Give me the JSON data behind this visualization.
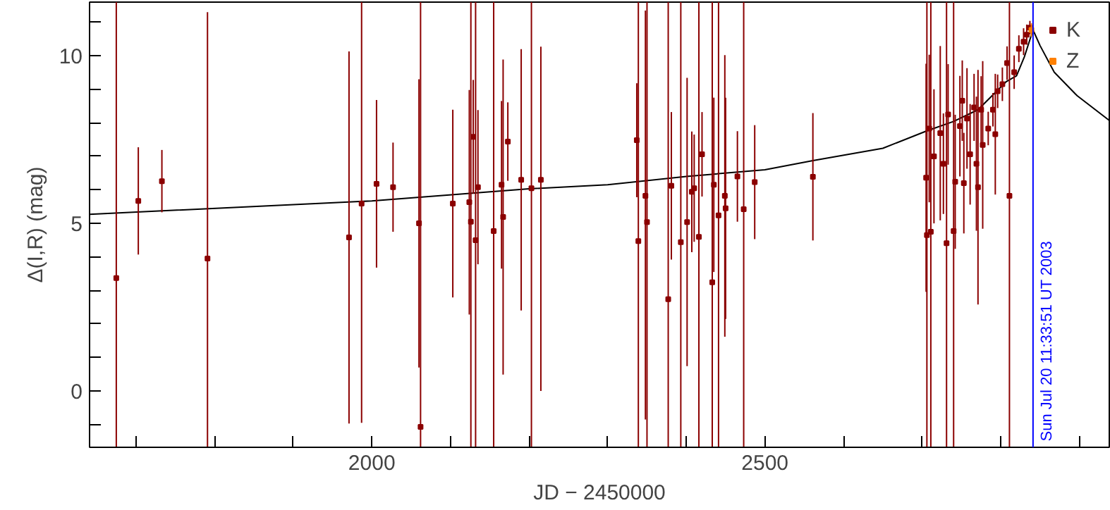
{
  "chart_data": {
    "type": "scatter",
    "xlabel": "JD − 2450000",
    "ylabel": "Δ(I,R) (mag)",
    "xlim": [
      1641,
      2938
    ],
    "ylim": [
      -1.68,
      11.6
    ],
    "xticks": [
      {
        "value": 1700,
        "label": null
      },
      {
        "value": 1800,
        "label": null
      },
      {
        "value": 1900,
        "label": null
      },
      2000,
      {
        "value": 2100,
        "label": null
      },
      {
        "value": 2200,
        "label": null
      },
      {
        "value": 2300,
        "label": null
      },
      {
        "value": 2400,
        "label": null
      },
      2500,
      {
        "value": 2600,
        "label": null
      },
      {
        "value": 2700,
        "label": null
      },
      {
        "value": 2800,
        "label": null
      },
      {
        "value": 2900,
        "label": null
      }
    ],
    "yticks": [
      {
        "value": -1,
        "label": null
      },
      0,
      {
        "value": 1,
        "label": null
      },
      {
        "value": 2,
        "label": null
      },
      {
        "value": 3,
        "label": null
      },
      {
        "value": 4,
        "label": null
      },
      5,
      {
        "value": 6,
        "label": null
      },
      {
        "value": 7,
        "label": null
      },
      {
        "value": 8,
        "label": null
      },
      {
        "value": 9,
        "label": null
      },
      10,
      {
        "value": 11,
        "label": null
      }
    ],
    "grid": false,
    "legend": "top right",
    "marker": "square",
    "series": [
      {
        "type": "line",
        "marker": "none",
        "color": "#000000",
        "x": [
          1641,
          2000,
          2200,
          2300,
          2400,
          2500,
          2561,
          2650,
          2706,
          2740,
          2771,
          2807,
          2820,
          2830,
          2841,
          2850,
          2868,
          2897,
          2938
        ],
        "values": [
          5.27,
          5.67,
          6.03,
          6.15,
          6.4,
          6.6,
          6.87,
          7.24,
          7.76,
          8.04,
          8.39,
          9.23,
          9.4,
          9.97,
          10.77,
          10.3,
          9.51,
          8.81,
          8.07
        ]
      },
      {
        "name": "K",
        "color": "#8b0000",
        "x": [
          1675,
          1703,
          1733,
          1791,
          1971,
          1987,
          2006,
          2027,
          2060,
          2062,
          2103,
          2124,
          2126,
          2129,
          2132,
          2135,
          2155,
          2165,
          2167,
          2173,
          2190,
          2203,
          2215,
          2337,
          2339,
          2348,
          2350,
          2377,
          2381,
          2393,
          2401,
          2407,
          2410,
          2416,
          2420,
          2433,
          2435,
          2441,
          2449,
          2450,
          2465,
          2473,
          2487,
          2561,
          2705,
          2706,
          2709,
          2711,
          2715,
          2723,
          2727,
          2731,
          2733,
          2740,
          2742,
          2748,
          2751,
          2753,
          2757,
          2761,
          2766,
          2769,
          2771,
          2775,
          2777,
          2784,
          2790,
          2793,
          2796,
          2802,
          2808,
          2811,
          2817,
          2823,
          2829,
          2833,
          2837
        ],
        "values": [
          3.37,
          5.67,
          6.26,
          3.95,
          4.58,
          5.59,
          6.18,
          6.08,
          5.0,
          -1.07,
          5.59,
          5.63,
          5.05,
          7.58,
          4.5,
          6.08,
          4.77,
          6.15,
          5.19,
          7.44,
          6.3,
          6.05,
          6.3,
          7.48,
          4.47,
          5.82,
          5.04,
          2.74,
          6.12,
          4.44,
          5.04,
          5.94,
          6.05,
          4.6,
          7.06,
          3.24,
          6.15,
          5.24,
          5.82,
          5.45,
          6.4,
          5.42,
          6.23,
          6.39,
          6.36,
          4.65,
          7.83,
          4.75,
          7.0,
          7.69,
          6.78,
          4.41,
          8.25,
          4.77,
          6.24,
          7.9,
          8.66,
          6.2,
          8.13,
          7.06,
          8.46,
          6.78,
          6.08,
          8.39,
          7.34,
          7.83,
          8.39,
          7.66,
          8.94,
          9.15,
          9.78,
          5.82,
          9.51,
          10.21,
          10.42,
          10.63,
          10.84
        ],
        "errors": [
          [
            -1.68,
            11.6
          ],
          1.6,
          0.93,
          [
            -1.68,
            11.3
          ],
          5.55,
          [
            -0.95,
            11.6
          ],
          2.5,
          1.33,
          4.3,
          [
            -1.68,
            11.6
          ],
          2.8,
          3.35,
          [
            -1.68,
            11.6
          ],
          1.7,
          [
            -1.68,
            11.6
          ],
          2.3,
          [
            -1.68,
            11.6
          ],
          2.5,
          4.7,
          1.17,
          3.9,
          [
            -1.68,
            11.6
          ],
          [
            0.0,
            10.27
          ],
          1.7,
          [
            -1.68,
            11.6
          ],
          [
            -0.85,
            11.35
          ],
          [
            -1.68,
            11.6
          ],
          [
            -1.68,
            11.6
          ],
          2.2,
          [
            -1.68,
            11.6
          ],
          4.3,
          1.8,
          1.6,
          [
            -1.68,
            11.6
          ],
          1.26,
          [
            -1.68,
            11.6
          ],
          2.6,
          [
            -1.68,
            11.6
          ],
          4.2,
          3.3,
          1.35,
          [
            -1.68,
            11.6
          ],
          1.7,
          1.9,
          3.4,
          [
            -1.68,
            11.6
          ],
          2.2,
          [
            -1.68,
            11.6
          ],
          2.0,
          2.6,
          1.5,
          [
            -1.68,
            11.6
          ],
          1.5,
          [
            -1.68,
            11.6
          ],
          2.0,
          1.5,
          1.2,
          1.5,
          1.5,
          1.5,
          1.0,
          2.0,
          3.5,
          1.0,
          2.5,
          0.5,
          0.5,
          1.8,
          0.5,
          0.5,
          0.5,
          [
            -1.68,
            11.6
          ],
          0.5,
          0.4,
          0.4,
          0.3,
          0.2
        ]
      },
      {
        "name": "Z",
        "color": "#ff8000",
        "x": [
          2839
        ],
        "values": [
          10.77
        ],
        "errors": [
          0.2
        ]
      }
    ],
    "ref_lines": [
      {
        "axis": "x",
        "value": 2841,
        "color": "#0000ff"
      }
    ],
    "annotations": [
      {
        "text": "Sun Jul 20 11:33:51 UT 2003",
        "x": 2841,
        "y": -1.5
      }
    ]
  }
}
